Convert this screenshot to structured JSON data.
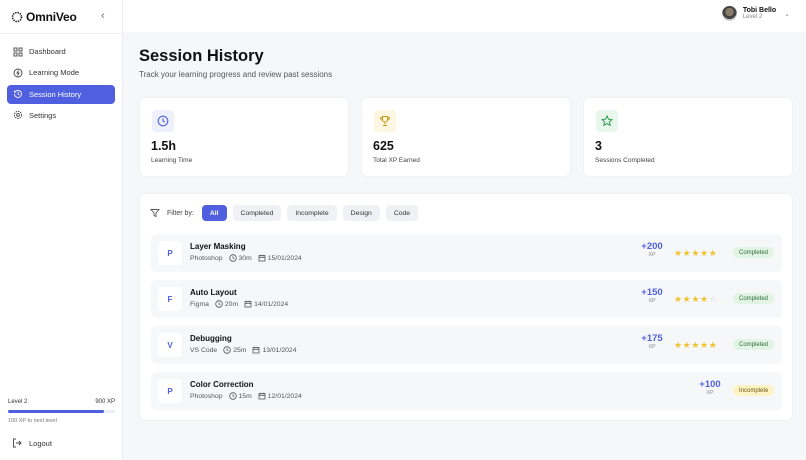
{
  "app": {
    "name": "OmniVeo"
  },
  "sidebar": {
    "items": [
      {
        "label": "Dashboard",
        "icon": "grid-icon"
      },
      {
        "label": "Learning Mode",
        "icon": "bolt-icon"
      },
      {
        "label": "Session History",
        "icon": "history-icon",
        "active": true
      },
      {
        "label": "Settings",
        "icon": "gear-icon"
      }
    ],
    "level": {
      "label": "Level 2",
      "xp": "900 XP",
      "progress_percent": 90,
      "note": "100 XP to next level"
    },
    "logout": "Logout"
  },
  "user": {
    "name": "Tobi Bello",
    "level": "Level 2"
  },
  "page": {
    "title": "Session History",
    "subtitle": "Track your learning progress and review past sessions"
  },
  "stats": [
    {
      "value": "1.5h",
      "label": "Learning Time",
      "icon": "clock-icon",
      "color": "#4f5fe0",
      "bg": "#eef0fd"
    },
    {
      "value": "625",
      "label": "Total XP Earned",
      "icon": "trophy-icon",
      "color": "#c99a1a",
      "bg": "#fdf6e0"
    },
    {
      "value": "3",
      "label": "Sessions Completed",
      "icon": "star-icon",
      "color": "#2e9a4d",
      "bg": "#e8f6ec"
    }
  ],
  "filter": {
    "label": "Filter by:",
    "options": [
      "All",
      "Completed",
      "Incomplete",
      "Design",
      "Code"
    ],
    "selected": "All"
  },
  "sessions": [
    {
      "letter": "P",
      "name": "Layer Masking",
      "tool": "Photoshop",
      "duration": "30m",
      "date": "15/01/2024",
      "xp": "+200",
      "xp_unit": "XP",
      "rating": 5,
      "status": "Completed"
    },
    {
      "letter": "F",
      "name": "Auto Layout",
      "tool": "Figma",
      "duration": "20m",
      "date": "14/01/2024",
      "xp": "+150",
      "xp_unit": "XP",
      "rating": 4,
      "status": "Completed"
    },
    {
      "letter": "V",
      "name": "Debugging",
      "tool": "VS Code",
      "duration": "25m",
      "date": "13/01/2024",
      "xp": "+175",
      "xp_unit": "XP",
      "rating": 5,
      "status": "Completed"
    },
    {
      "letter": "P",
      "name": "Color Correction",
      "tool": "Photoshop",
      "duration": "15m",
      "date": "12/01/2024",
      "xp": "+100",
      "xp_unit": "XP",
      "rating": null,
      "status": "Incomplete"
    }
  ]
}
